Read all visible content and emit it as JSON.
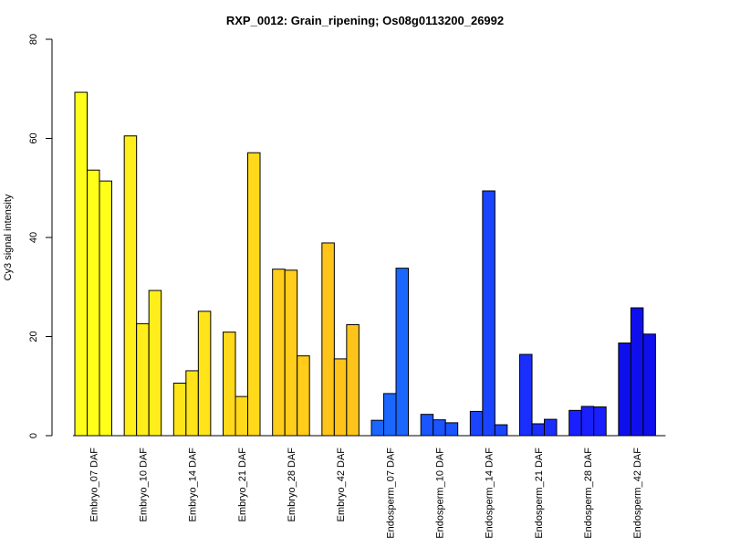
{
  "chart_data": {
    "type": "bar",
    "title": "RXP_0012: Grain_ripening; Os08g0113200_26992",
    "xlabel": "",
    "ylabel": "Cy3 signal intensity",
    "ylim": [
      0,
      80
    ],
    "yticks": [
      0,
      20,
      40,
      60,
      80
    ],
    "grid": false,
    "categories": [
      "Embryo_07 DAF",
      "Embryo_10 DAF",
      "Embryo_14 DAF",
      "Embryo_21 DAF",
      "Embryo_28 DAF",
      "Embryo_42 DAF",
      "Endosperm_07 DAF",
      "Endosperm_10 DAF",
      "Endosperm_14 DAF",
      "Endosperm_21 DAF",
      "Endosperm_28 DAF",
      "Endosperm_42 DAF"
    ],
    "colors": [
      "#ffff1a",
      "#ffee1a",
      "#ffe41a",
      "#ffd91a",
      "#ffcd1a",
      "#ffc41a",
      "#1a66ff",
      "#1a55ff",
      "#1a44ff",
      "#1a2fff",
      "#1a1fff",
      "#0f0fee"
    ],
    "values": [
      [
        69.3,
        53.6,
        51.4
      ],
      [
        60.5,
        22.6,
        29.3
      ],
      [
        10.6,
        13.1,
        25.1
      ],
      [
        20.9,
        7.9,
        57.1
      ],
      [
        33.6,
        33.4,
        16.1
      ],
      [
        38.9,
        15.5,
        22.4
      ],
      [
        3.1,
        8.5,
        33.8
      ],
      [
        4.3,
        3.2,
        2.6
      ],
      [
        4.9,
        49.4,
        2.2
      ],
      [
        16.4,
        2.4,
        3.3
      ],
      [
        5.1,
        5.9,
        5.8
      ],
      [
        18.7,
        25.8,
        20.5
      ]
    ]
  }
}
